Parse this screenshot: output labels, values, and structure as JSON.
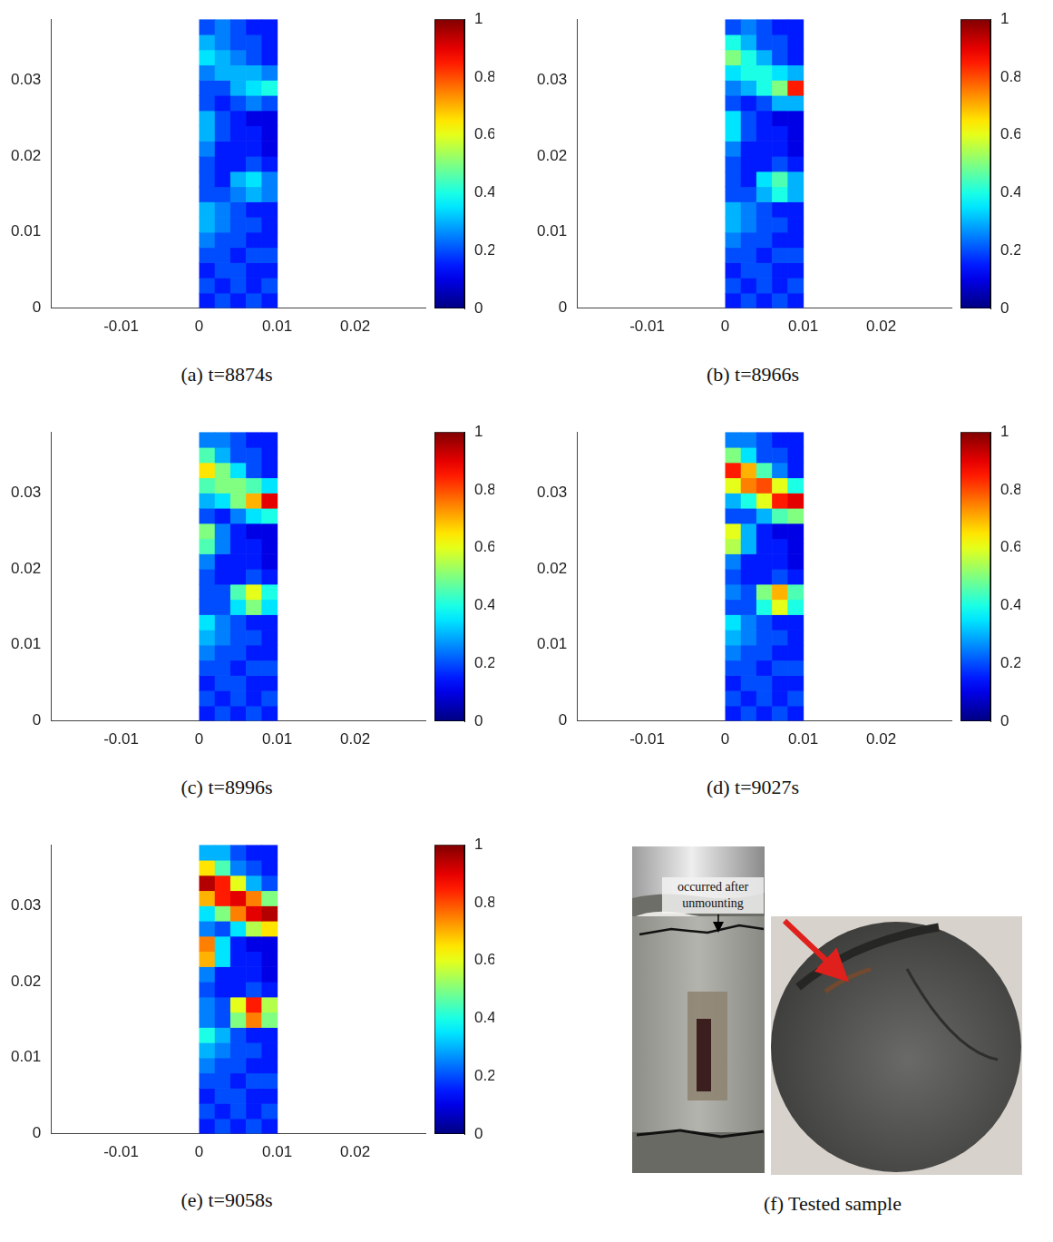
{
  "chart_data": [
    {
      "type": "heatmap",
      "title": "(a) t=8874s",
      "xlim": [
        -0.019,
        0.029
      ],
      "xticks": [
        -0.01,
        0,
        0.01,
        0.02
      ],
      "ylim": [
        0,
        0.038
      ],
      "yticks": [
        0,
        0.01,
        0.02,
        0.03
      ],
      "grid": false,
      "x_edges": [
        0,
        0.002,
        0.004,
        0.006,
        0.008,
        0.01
      ],
      "y_edges": [
        0,
        0.002,
        0.004,
        0.006,
        0.008,
        0.01,
        0.012,
        0.014,
        0.016,
        0.018,
        0.02,
        0.022,
        0.024,
        0.026,
        0.028,
        0.03,
        0.032,
        0.034,
        0.036,
        0.038
      ],
      "cells": [
        [
          0.15,
          0.2,
          0.15,
          0.2,
          0.15
        ],
        [
          0.2,
          0.15,
          0.2,
          0.15,
          0.2
        ],
        [
          0.15,
          0.2,
          0.2,
          0.15,
          0.15
        ],
        [
          0.2,
          0.2,
          0.15,
          0.2,
          0.2
        ],
        [
          0.25,
          0.2,
          0.2,
          0.15,
          0.15
        ],
        [
          0.3,
          0.25,
          0.2,
          0.2,
          0.15
        ],
        [
          0.3,
          0.25,
          0.2,
          0.15,
          0.15
        ],
        [
          0.2,
          0.2,
          0.25,
          0.3,
          0.25
        ],
        [
          0.2,
          0.15,
          0.3,
          0.35,
          0.25
        ],
        [
          0.2,
          0.15,
          0.15,
          0.2,
          0.15
        ],
        [
          0.25,
          0.15,
          0.15,
          0.15,
          0.1
        ],
        [
          0.3,
          0.2,
          0.15,
          0.15,
          0.1
        ],
        [
          0.3,
          0.2,
          0.15,
          0.1,
          0.1
        ],
        [
          0.2,
          0.15,
          0.2,
          0.25,
          0.2
        ],
        [
          0.2,
          0.2,
          0.3,
          0.35,
          0.4
        ],
        [
          0.25,
          0.3,
          0.3,
          0.3,
          0.25
        ],
        [
          0.35,
          0.3,
          0.25,
          0.2,
          0.15
        ],
        [
          0.3,
          0.25,
          0.2,
          0.2,
          0.15
        ],
        [
          0.2,
          0.25,
          0.2,
          0.15,
          0.15
        ]
      ],
      "colorbar": {
        "range": [
          0,
          1
        ],
        "ticks": [
          0,
          0.2,
          0.4,
          0.6,
          0.8,
          1
        ]
      }
    },
    {
      "type": "heatmap",
      "title": "(b) t=8966s",
      "xlim": [
        -0.019,
        0.029
      ],
      "xticks": [
        -0.01,
        0,
        0.01,
        0.02
      ],
      "ylim": [
        0,
        0.038
      ],
      "yticks": [
        0,
        0.01,
        0.02,
        0.03
      ],
      "grid": false,
      "x_edges": [
        0,
        0.002,
        0.004,
        0.006,
        0.008,
        0.01
      ],
      "y_edges": [
        0,
        0.002,
        0.004,
        0.006,
        0.008,
        0.01,
        0.012,
        0.014,
        0.016,
        0.018,
        0.02,
        0.022,
        0.024,
        0.026,
        0.028,
        0.03,
        0.032,
        0.034,
        0.036,
        0.038
      ],
      "cells": [
        [
          0.15,
          0.2,
          0.15,
          0.2,
          0.15
        ],
        [
          0.2,
          0.15,
          0.2,
          0.15,
          0.2
        ],
        [
          0.15,
          0.2,
          0.2,
          0.15,
          0.15
        ],
        [
          0.2,
          0.2,
          0.15,
          0.2,
          0.2
        ],
        [
          0.25,
          0.2,
          0.2,
          0.15,
          0.15
        ],
        [
          0.3,
          0.25,
          0.2,
          0.2,
          0.15
        ],
        [
          0.3,
          0.25,
          0.2,
          0.15,
          0.15
        ],
        [
          0.2,
          0.2,
          0.3,
          0.4,
          0.3
        ],
        [
          0.2,
          0.15,
          0.35,
          0.45,
          0.3
        ],
        [
          0.2,
          0.15,
          0.15,
          0.2,
          0.15
        ],
        [
          0.25,
          0.15,
          0.15,
          0.15,
          0.1
        ],
        [
          0.35,
          0.2,
          0.15,
          0.15,
          0.1
        ],
        [
          0.35,
          0.2,
          0.15,
          0.1,
          0.1
        ],
        [
          0.2,
          0.15,
          0.2,
          0.3,
          0.3
        ],
        [
          0.25,
          0.3,
          0.4,
          0.5,
          0.85
        ],
        [
          0.35,
          0.4,
          0.4,
          0.35,
          0.3
        ],
        [
          0.5,
          0.4,
          0.3,
          0.2,
          0.15
        ],
        [
          0.4,
          0.3,
          0.2,
          0.2,
          0.15
        ],
        [
          0.2,
          0.25,
          0.2,
          0.15,
          0.15
        ]
      ],
      "colorbar": {
        "range": [
          0,
          1
        ],
        "ticks": [
          0,
          0.2,
          0.4,
          0.6,
          0.8,
          1
        ]
      }
    },
    {
      "type": "heatmap",
      "title": "(c) t=8996s",
      "xlim": [
        -0.019,
        0.029
      ],
      "xticks": [
        -0.01,
        0,
        0.01,
        0.02
      ],
      "ylim": [
        0,
        0.038
      ],
      "yticks": [
        0,
        0.01,
        0.02,
        0.03
      ],
      "grid": false,
      "x_edges": [
        0,
        0.002,
        0.004,
        0.006,
        0.008,
        0.01
      ],
      "y_edges": [
        0,
        0.002,
        0.004,
        0.006,
        0.008,
        0.01,
        0.012,
        0.014,
        0.016,
        0.018,
        0.02,
        0.022,
        0.024,
        0.026,
        0.028,
        0.03,
        0.032,
        0.034,
        0.036,
        0.038
      ],
      "cells": [
        [
          0.15,
          0.2,
          0.15,
          0.2,
          0.15
        ],
        [
          0.2,
          0.15,
          0.2,
          0.15,
          0.2
        ],
        [
          0.15,
          0.2,
          0.2,
          0.15,
          0.15
        ],
        [
          0.2,
          0.2,
          0.15,
          0.2,
          0.2
        ],
        [
          0.25,
          0.2,
          0.2,
          0.15,
          0.15
        ],
        [
          0.3,
          0.25,
          0.2,
          0.2,
          0.15
        ],
        [
          0.35,
          0.25,
          0.2,
          0.15,
          0.15
        ],
        [
          0.2,
          0.2,
          0.35,
          0.5,
          0.35
        ],
        [
          0.2,
          0.2,
          0.45,
          0.6,
          0.4
        ],
        [
          0.2,
          0.15,
          0.15,
          0.2,
          0.15
        ],
        [
          0.25,
          0.15,
          0.15,
          0.15,
          0.1
        ],
        [
          0.45,
          0.25,
          0.15,
          0.15,
          0.1
        ],
        [
          0.5,
          0.25,
          0.15,
          0.1,
          0.1
        ],
        [
          0.2,
          0.15,
          0.25,
          0.35,
          0.4
        ],
        [
          0.3,
          0.35,
          0.5,
          0.7,
          0.9
        ],
        [
          0.45,
          0.5,
          0.5,
          0.45,
          0.35
        ],
        [
          0.65,
          0.5,
          0.35,
          0.2,
          0.15
        ],
        [
          0.45,
          0.3,
          0.2,
          0.2,
          0.15
        ],
        [
          0.25,
          0.25,
          0.2,
          0.15,
          0.15
        ]
      ],
      "colorbar": {
        "range": [
          0,
          1
        ],
        "ticks": [
          0,
          0.2,
          0.4,
          0.6,
          0.8,
          1
        ]
      }
    },
    {
      "type": "heatmap",
      "title": "(d) t=9027s",
      "xlim": [
        -0.019,
        0.029
      ],
      "xticks": [
        -0.01,
        0,
        0.01,
        0.02
      ],
      "ylim": [
        0,
        0.038
      ],
      "yticks": [
        0,
        0.01,
        0.02,
        0.03
      ],
      "grid": false,
      "x_edges": [
        0,
        0.002,
        0.004,
        0.006,
        0.008,
        0.01
      ],
      "y_edges": [
        0,
        0.002,
        0.004,
        0.006,
        0.008,
        0.01,
        0.012,
        0.014,
        0.016,
        0.018,
        0.02,
        0.022,
        0.024,
        0.026,
        0.028,
        0.03,
        0.032,
        0.034,
        0.036,
        0.038
      ],
      "cells": [
        [
          0.15,
          0.2,
          0.15,
          0.2,
          0.15
        ],
        [
          0.2,
          0.15,
          0.2,
          0.15,
          0.2
        ],
        [
          0.15,
          0.2,
          0.2,
          0.15,
          0.15
        ],
        [
          0.2,
          0.2,
          0.15,
          0.2,
          0.2
        ],
        [
          0.25,
          0.2,
          0.2,
          0.15,
          0.15
        ],
        [
          0.3,
          0.25,
          0.2,
          0.2,
          0.15
        ],
        [
          0.35,
          0.25,
          0.2,
          0.15,
          0.15
        ],
        [
          0.2,
          0.2,
          0.4,
          0.6,
          0.4
        ],
        [
          0.25,
          0.2,
          0.5,
          0.7,
          0.45
        ],
        [
          0.2,
          0.15,
          0.15,
          0.2,
          0.15
        ],
        [
          0.25,
          0.15,
          0.15,
          0.15,
          0.1
        ],
        [
          0.55,
          0.3,
          0.15,
          0.15,
          0.1
        ],
        [
          0.6,
          0.3,
          0.15,
          0.1,
          0.1
        ],
        [
          0.2,
          0.2,
          0.3,
          0.45,
          0.5
        ],
        [
          0.3,
          0.4,
          0.6,
          0.85,
          0.9
        ],
        [
          0.6,
          0.75,
          0.8,
          0.6,
          0.4
        ],
        [
          0.85,
          0.7,
          0.45,
          0.25,
          0.15
        ],
        [
          0.5,
          0.35,
          0.2,
          0.2,
          0.15
        ],
        [
          0.25,
          0.25,
          0.2,
          0.15,
          0.15
        ]
      ],
      "colorbar": {
        "range": [
          0,
          1
        ],
        "ticks": [
          0,
          0.2,
          0.4,
          0.6,
          0.8,
          1
        ]
      }
    },
    {
      "type": "heatmap",
      "title": "(e) t=9058s",
      "xlim": [
        -0.019,
        0.029
      ],
      "xticks": [
        -0.01,
        0,
        0.01,
        0.02
      ],
      "ylim": [
        0,
        0.038
      ],
      "yticks": [
        0,
        0.01,
        0.02,
        0.03
      ],
      "grid": false,
      "x_edges": [
        0,
        0.002,
        0.004,
        0.006,
        0.008,
        0.01
      ],
      "y_edges": [
        0,
        0.002,
        0.004,
        0.006,
        0.008,
        0.01,
        0.012,
        0.014,
        0.016,
        0.018,
        0.02,
        0.022,
        0.024,
        0.026,
        0.028,
        0.03,
        0.032,
        0.034,
        0.036,
        0.038
      ],
      "cells": [
        [
          0.15,
          0.2,
          0.15,
          0.2,
          0.15
        ],
        [
          0.2,
          0.15,
          0.2,
          0.15,
          0.2
        ],
        [
          0.15,
          0.2,
          0.2,
          0.15,
          0.15
        ],
        [
          0.2,
          0.2,
          0.15,
          0.2,
          0.2
        ],
        [
          0.25,
          0.2,
          0.2,
          0.15,
          0.15
        ],
        [
          0.3,
          0.25,
          0.2,
          0.2,
          0.15
        ],
        [
          0.4,
          0.3,
          0.2,
          0.15,
          0.15
        ],
        [
          0.25,
          0.2,
          0.5,
          0.75,
          0.5
        ],
        [
          0.25,
          0.2,
          0.6,
          0.85,
          0.55
        ],
        [
          0.2,
          0.15,
          0.15,
          0.2,
          0.15
        ],
        [
          0.25,
          0.15,
          0.15,
          0.15,
          0.1
        ],
        [
          0.7,
          0.35,
          0.15,
          0.15,
          0.1
        ],
        [
          0.75,
          0.35,
          0.15,
          0.1,
          0.1
        ],
        [
          0.25,
          0.2,
          0.35,
          0.55,
          0.65
        ],
        [
          0.35,
          0.5,
          0.75,
          0.9,
          0.95
        ],
        [
          0.7,
          0.85,
          0.9,
          0.75,
          0.5
        ],
        [
          0.95,
          0.85,
          0.6,
          0.3,
          0.2
        ],
        [
          0.65,
          0.45,
          0.25,
          0.2,
          0.15
        ],
        [
          0.3,
          0.3,
          0.2,
          0.15,
          0.15
        ]
      ],
      "colorbar": {
        "range": [
          0,
          1
        ],
        "ticks": [
          0,
          0.2,
          0.4,
          0.6,
          0.8,
          1
        ]
      }
    }
  ],
  "photo": {
    "title": "(f) Tested sample",
    "annotation_lines": [
      "occurred after",
      "unmounting"
    ]
  }
}
